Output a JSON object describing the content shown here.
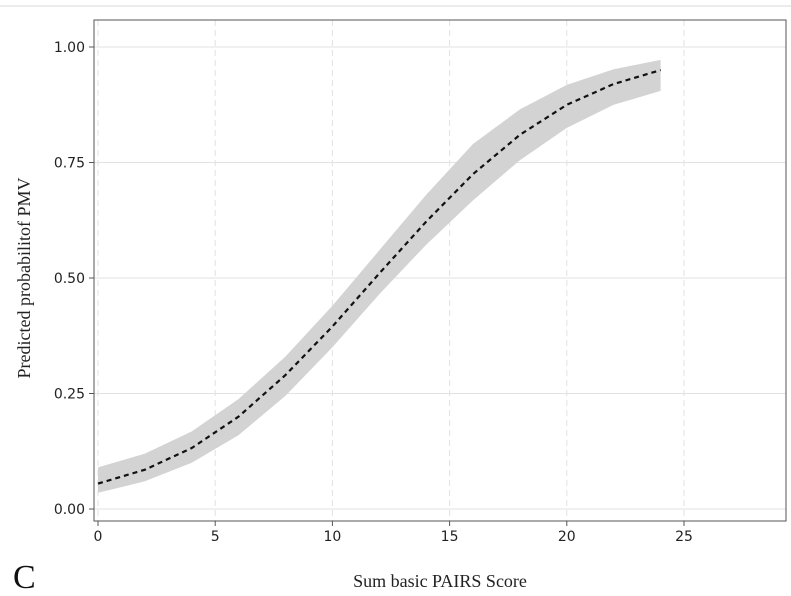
{
  "panel_letter": "C",
  "chart_data": {
    "type": "line",
    "title": "",
    "xlabel": "Sum basic PAIRS Score",
    "ylabel": "Predicted probabilitof PMV",
    "xlim": [
      0,
      25
    ],
    "ylim": [
      0,
      1
    ],
    "x_ticks": [
      0,
      5,
      10,
      15,
      20,
      25
    ],
    "x_tick_labels": [
      "0",
      "5",
      "10",
      "15",
      "20",
      "25"
    ],
    "y_ticks": [
      0,
      0.25,
      0.5,
      0.75,
      1.0
    ],
    "y_tick_labels": [
      "0.00",
      "0.25",
      "0.50",
      "0.75",
      "1.00"
    ],
    "grid": {
      "x": "dashed",
      "y": "solid"
    },
    "colors": {
      "line": "#111111",
      "band": "#d3d3d3",
      "grid": "#e2e2e2",
      "frame": "#555555"
    },
    "series": [
      {
        "x": [
          0,
          2,
          4,
          6,
          8,
          10,
          12,
          14,
          16,
          18,
          20,
          22,
          24
        ],
        "y": [
          0.055,
          0.085,
          0.132,
          0.2,
          0.29,
          0.395,
          0.51,
          0.622,
          0.725,
          0.81,
          0.875,
          0.92,
          0.95
        ],
        "lower": [
          0.035,
          0.06,
          0.1,
          0.16,
          0.245,
          0.35,
          0.465,
          0.572,
          0.668,
          0.755,
          0.825,
          0.875,
          0.905
        ],
        "upper": [
          0.09,
          0.12,
          0.168,
          0.238,
          0.33,
          0.44,
          0.56,
          0.68,
          0.79,
          0.865,
          0.918,
          0.952,
          0.972
        ],
        "style": "dashed",
        "band": "confidence interval"
      }
    ]
  }
}
